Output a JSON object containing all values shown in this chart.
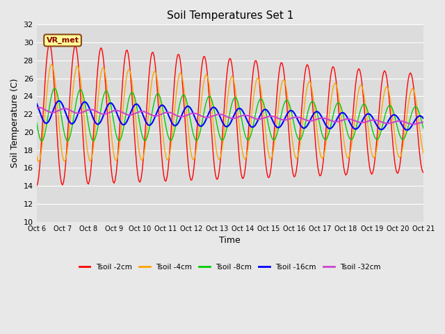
{
  "title": "Soil Temperatures Set 1",
  "xlabel": "Time",
  "ylabel": "Soil Temperature (C)",
  "ylim": [
    10,
    32
  ],
  "yticks": [
    10,
    12,
    14,
    16,
    18,
    20,
    22,
    24,
    26,
    28,
    30,
    32
  ],
  "xtick_labels": [
    "Oct 6",
    "Oct 7",
    "Oct 8",
    "Oct 9",
    "Oct 10",
    "Oct 11",
    "Oct 12",
    "Oct 13",
    "Oct 14",
    "Oct 15",
    "Oct 16",
    "Oct 17",
    "Oct 18",
    "Oct 19",
    "Oct 20",
    "Oct 21"
  ],
  "annotation_text": "VR_met",
  "colors": {
    "Tsoil -2cm": "#FF0000",
    "Tsoil -4cm": "#FFA500",
    "Tsoil -8cm": "#00CC00",
    "Tsoil -16cm": "#0000FF",
    "Tsoil -32cm": "#CC44CC"
  },
  "fig_bg_color": "#E8E8E8",
  "plot_bg_color": "#DCDCDC",
  "grid_color": "#FFFFFF",
  "n_days": 15,
  "hours_per_day": 24,
  "legend_labels": [
    "Tsoil -2cm",
    "Tsoil -4cm",
    "Tsoil -8cm",
    "Tsoil -16cm",
    "Tsoil -32cm"
  ]
}
